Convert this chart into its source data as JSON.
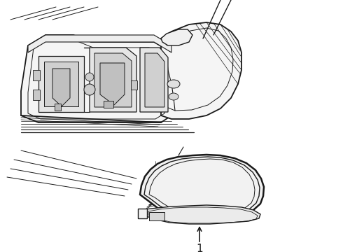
{
  "bg_color": "#ffffff",
  "line_color": "#1a1a1a",
  "fig_width": 4.9,
  "fig_height": 3.6,
  "dpi": 100,
  "label_number": "1"
}
